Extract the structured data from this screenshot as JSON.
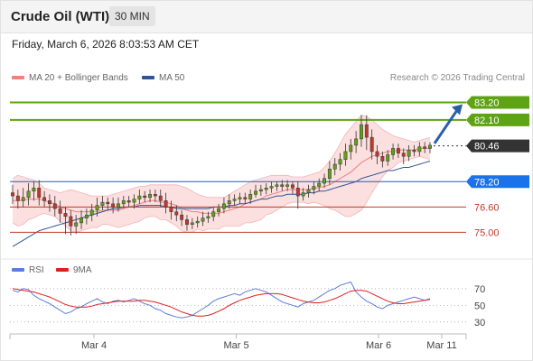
{
  "header": {
    "title": "Crude Oil (WTI)",
    "timeframe": "30 MIN"
  },
  "datetime": "Friday, March 6, 2026 8:03:53 AM CET",
  "legend": {
    "ma20_label": "MA 20 + Bollinger Bands",
    "ma50_label": "MA 50",
    "credit": "Research © 2026 Trading Central"
  },
  "rsi_legend": {
    "rsi_label": "RSI",
    "ma_label": "9MA"
  },
  "colors": {
    "resistance": "#5ea313",
    "support": "#c0392b",
    "pivot": "#2a5fa8",
    "current": "#333333",
    "pivot_tag": "#1a73e8",
    "bollinger": "#f6a4a4",
    "ma50": "#2f5597",
    "rsi": "#5b7fd9",
    "rsi_ma": "#e02020"
  },
  "chart_data": [
    {
      "type": "candlestick",
      "ylim": [
        73.6,
        84.2
      ],
      "levels": [
        {
          "value": 83.2,
          "label": "83.20",
          "kind": "resistance"
        },
        {
          "value": 82.1,
          "label": "82.10",
          "kind": "resistance"
        },
        {
          "value": 80.46,
          "label": "80.46",
          "kind": "current"
        },
        {
          "value": 78.2,
          "label": "78.20",
          "kind": "pivot"
        },
        {
          "value": 76.6,
          "label": "76.60",
          "kind": "support"
        },
        {
          "value": 75.0,
          "label": "75.00",
          "kind": "support"
        }
      ],
      "x_ticks": [
        "Mar 4",
        "Mar 5",
        "Mar 6",
        "Mar 11"
      ],
      "x_tick_positions": [
        0.18,
        0.495,
        0.81,
        0.95
      ],
      "close": [
        77.3,
        77.0,
        77.2,
        77.6,
        77.8,
        77.2,
        77.0,
        76.8,
        76.5,
        76.2,
        76.0,
        75.4,
        75.6,
        75.9,
        76.1,
        76.4,
        76.7,
        76.9,
        76.8,
        76.6,
        76.8,
        77.0,
        76.9,
        77.1,
        77.3,
        77.2,
        77.4,
        77.3,
        77.0,
        76.6,
        76.3,
        76.1,
        75.8,
        75.5,
        75.6,
        75.7,
        75.9,
        76.0,
        76.3,
        76.5,
        76.8,
        77.0,
        77.1,
        77.2,
        77.1,
        77.4,
        77.6,
        77.7,
        77.8,
        77.9,
        78.0,
        77.9,
        78.0,
        77.8,
        77.3,
        77.5,
        77.7,
        77.9,
        78.1,
        78.4,
        79.0,
        79.3,
        79.6,
        80.1,
        80.5,
        80.9,
        81.8,
        81.0,
        80.1,
        79.8,
        79.5,
        79.9,
        80.3,
        80.0,
        79.8,
        80.2,
        80.1,
        80.4,
        80.3,
        80.5
      ],
      "high_offset": [
        0.5,
        0.4,
        0.6,
        0.5,
        0.4,
        0.5,
        0.4,
        0.4,
        0.5,
        0.5,
        0.4,
        0.4,
        0.5,
        0.5,
        0.4,
        0.4,
        0.5,
        0.4,
        0.3,
        0.4,
        0.4,
        0.3,
        0.3,
        0.3,
        0.4,
        0.3,
        0.3,
        0.3,
        0.4,
        0.5,
        0.4,
        0.4,
        0.3,
        0.3,
        0.3,
        0.3,
        0.4,
        0.3,
        0.3,
        0.3,
        0.4,
        0.4,
        0.3,
        0.3,
        0.3,
        0.3,
        0.4,
        0.3,
        0.3,
        0.3,
        0.2,
        0.3,
        0.3,
        0.2,
        0.4,
        0.3,
        0.3,
        0.3,
        0.3,
        0.3,
        0.5,
        0.4,
        0.4,
        0.5,
        0.4,
        0.5,
        0.6,
        0.6,
        0.5,
        0.4,
        0.3,
        0.3,
        0.3,
        0.3,
        0.3,
        0.3,
        0.3,
        0.3,
        0.3,
        0.2
      ],
      "low_offset": [
        0.5,
        0.5,
        0.4,
        0.5,
        0.6,
        0.5,
        0.4,
        0.5,
        0.5,
        0.6,
        1.1,
        0.6,
        0.5,
        0.4,
        0.4,
        0.4,
        0.4,
        0.3,
        0.4,
        0.4,
        0.3,
        0.3,
        0.3,
        0.4,
        0.3,
        0.3,
        0.3,
        0.4,
        0.4,
        0.4,
        0.5,
        0.4,
        0.4,
        0.4,
        0.3,
        0.3,
        0.3,
        0.3,
        0.3,
        0.3,
        0.3,
        0.3,
        0.3,
        0.3,
        0.3,
        0.3,
        0.2,
        0.3,
        0.3,
        0.3,
        0.3,
        0.3,
        0.3,
        0.4,
        0.8,
        0.3,
        0.3,
        0.3,
        0.3,
        0.3,
        0.4,
        0.4,
        0.4,
        0.4,
        0.5,
        0.5,
        0.5,
        0.8,
        0.5,
        0.5,
        0.4,
        0.3,
        0.3,
        0.3,
        0.5,
        0.3,
        0.3,
        0.3,
        0.3,
        0.3
      ],
      "ma20": [
        77.0,
        77.0,
        77.0,
        77.1,
        77.1,
        77.1,
        77.0,
        76.9,
        76.8,
        76.6,
        76.5,
        76.4,
        76.3,
        76.3,
        76.3,
        76.3,
        76.3,
        76.4,
        76.4,
        76.4,
        76.4,
        76.5,
        76.6,
        76.7,
        76.8,
        76.9,
        77.0,
        77.0,
        76.9,
        76.9,
        76.8,
        76.7,
        76.5,
        76.4,
        76.3,
        76.3,
        76.2,
        76.2,
        76.2,
        76.2,
        76.3,
        76.4,
        76.5,
        76.6,
        76.8,
        76.9,
        77.0,
        77.1,
        77.3,
        77.4,
        77.5,
        77.6,
        77.7,
        77.7,
        77.7,
        77.7,
        77.7,
        77.8,
        77.8,
        77.9,
        78.0,
        78.2,
        78.4,
        78.6,
        78.8,
        79.1,
        79.4,
        79.6,
        79.8,
        79.9,
        80.0,
        80.1,
        80.1,
        80.2,
        80.2,
        80.2,
        80.2,
        80.3,
        80.3,
        80.3
      ],
      "bb_upper": [
        78.4,
        78.6,
        78.5,
        78.4,
        78.3,
        78.1,
        77.8,
        77.7,
        77.6,
        77.5,
        77.6,
        77.7,
        77.6,
        77.5,
        77.4,
        77.3,
        77.3,
        77.3,
        77.3,
        77.4,
        77.5,
        77.6,
        77.7,
        77.8,
        77.9,
        77.9,
        78.0,
        78.0,
        78.0,
        78.0,
        78.0,
        78.0,
        77.9,
        77.8,
        77.6,
        77.4,
        77.3,
        77.2,
        77.2,
        77.2,
        77.2,
        77.4,
        77.6,
        77.8,
        78.0,
        78.2,
        78.3,
        78.4,
        78.5,
        78.6,
        78.6,
        78.6,
        78.6,
        78.5,
        78.5,
        78.5,
        78.6,
        78.7,
        78.8,
        79.1,
        79.5,
        80.0,
        80.6,
        81.2,
        81.6,
        82.0,
        82.4,
        82.3,
        82.1,
        81.8,
        81.5,
        81.3,
        81.1,
        81.0,
        80.9,
        80.8,
        80.7,
        80.8,
        80.9,
        81.0
      ],
      "bb_lower": [
        75.6,
        75.4,
        75.5,
        75.8,
        75.9,
        76.1,
        76.2,
        76.1,
        76.0,
        75.7,
        75.4,
        75.1,
        75.0,
        75.1,
        75.2,
        75.3,
        75.3,
        75.5,
        75.5,
        75.4,
        75.3,
        75.4,
        75.5,
        75.6,
        75.7,
        75.9,
        76.0,
        76.0,
        75.8,
        75.8,
        75.6,
        75.4,
        75.1,
        75.0,
        75.0,
        75.2,
        75.1,
        75.2,
        75.2,
        75.2,
        75.4,
        75.4,
        75.4,
        75.4,
        75.6,
        75.6,
        75.7,
        75.8,
        76.1,
        76.2,
        76.4,
        76.6,
        76.8,
        76.9,
        76.9,
        76.9,
        76.8,
        76.9,
        76.8,
        76.7,
        76.5,
        76.4,
        76.2,
        76.0,
        76.0,
        76.2,
        76.4,
        76.9,
        77.5,
        78.0,
        78.5,
        78.9,
        79.1,
        79.4,
        79.5,
        79.6,
        79.7,
        79.8,
        79.7,
        79.6
      ],
      "ma50": [
        74.1,
        74.3,
        74.5,
        74.7,
        74.9,
        75.1,
        75.2,
        75.3,
        75.4,
        75.5,
        75.6,
        75.7,
        75.8,
        75.9,
        76.0,
        76.1,
        76.2,
        76.3,
        76.4,
        76.5,
        76.5,
        76.6,
        76.6,
        76.6,
        76.7,
        76.7,
        76.7,
        76.7,
        76.7,
        76.6,
        76.6,
        76.5,
        76.5,
        76.5,
        76.5,
        76.5,
        76.5,
        76.5,
        76.6,
        76.6,
        76.6,
        76.7,
        76.7,
        76.8,
        76.8,
        76.9,
        77.0,
        77.1,
        77.1,
        77.2,
        77.3,
        77.3,
        77.4,
        77.4,
        77.4,
        77.4,
        77.5,
        77.5,
        77.6,
        77.6,
        77.7,
        77.8,
        77.9,
        78.0,
        78.1,
        78.2,
        78.4,
        78.5,
        78.6,
        78.7,
        78.8,
        78.9,
        78.9,
        79.0,
        79.1,
        79.1,
        79.2,
        79.3,
        79.4,
        79.5
      ]
    },
    {
      "type": "line",
      "name": "RSI",
      "ylim": [
        20,
        85
      ],
      "y_ticks": [
        "70",
        "50",
        "30"
      ],
      "y_tick_values": [
        70,
        50,
        30
      ],
      "rsi": [
        68,
        66,
        70,
        69,
        62,
        58,
        55,
        52,
        48,
        44,
        40,
        42,
        46,
        48,
        52,
        55,
        58,
        54,
        52,
        55,
        56,
        54,
        56,
        58,
        55,
        52,
        50,
        46,
        44,
        40,
        38,
        36,
        35,
        36,
        38,
        42,
        46,
        50,
        55,
        58,
        60,
        62,
        64,
        62,
        66,
        68,
        70,
        68,
        66,
        62,
        58,
        54,
        52,
        50,
        48,
        52,
        54,
        56,
        60,
        64,
        68,
        70,
        74,
        76,
        78,
        66,
        60,
        55,
        52,
        48,
        46,
        50,
        52,
        54,
        56,
        58,
        60,
        58,
        56,
        58
      ],
      "rsi_ma": [
        70,
        69,
        68,
        67,
        66,
        64,
        62,
        60,
        57,
        54,
        51,
        49,
        48,
        48,
        48,
        49,
        51,
        52,
        53,
        54,
        55,
        55,
        55,
        55,
        56,
        56,
        55,
        54,
        52,
        50,
        48,
        45,
        42,
        40,
        38,
        37,
        37,
        38,
        40,
        43,
        46,
        50,
        53,
        56,
        58,
        60,
        62,
        63,
        64,
        64,
        64,
        63,
        61,
        59,
        57,
        55,
        54,
        53,
        53,
        54,
        56,
        58,
        61,
        64,
        67,
        68,
        68,
        67,
        64,
        61,
        58,
        55,
        53,
        52,
        52,
        53,
        54,
        55,
        56,
        57
      ]
    }
  ]
}
